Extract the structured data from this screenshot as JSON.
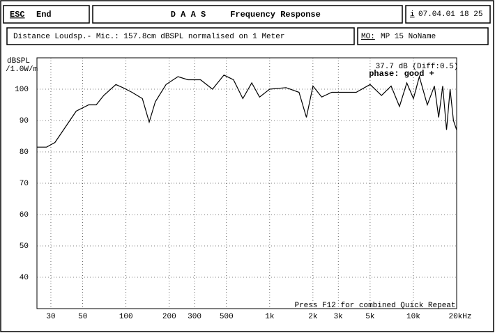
{
  "header": {
    "esc_key": "ESC",
    "esc_label": "End",
    "title": "D A A S",
    "subtitle": "Frequency Response",
    "info_key": "i",
    "date": "07.04.01 18 25"
  },
  "status": {
    "measurement": "Distance Loudsp.- Mic.: 157.8cm dBSPL normalised on 1 Meter",
    "model_key": "MO:",
    "model": "MP 15 NoName"
  },
  "chart_data": {
    "type": "line",
    "y_label_1": "dBSPL",
    "y_label_2": "/1.0W/m",
    "annotations": [
      "37.7 dB (Diff:0.5)",
      "phase: good +",
      "Press F12 for combined Quick Repeat"
    ],
    "x_log": true,
    "grid": true,
    "xlim": [
      24,
      20000
    ],
    "ylim": [
      30,
      110
    ],
    "xticks": [
      30,
      50,
      100,
      200,
      300,
      500,
      {
        "value": 1000,
        "label": "1k"
      },
      {
        "value": 2000,
        "label": "2k"
      },
      {
        "value": 3000,
        "label": "3k"
      },
      {
        "value": 5000,
        "label": "5k"
      },
      {
        "value": 10000,
        "label": "10k"
      },
      {
        "value": 20000,
        "label": "20kHz"
      }
    ],
    "yticks": [
      40,
      50,
      60,
      70,
      80,
      90,
      100
    ],
    "series": [
      {
        "color": "#000000",
        "x": [
          24,
          28,
          32,
          38,
          45,
          55,
          62,
          70,
          85,
          95,
          110,
          130,
          145,
          160,
          190,
          230,
          270,
          330,
          400,
          480,
          560,
          650,
          750,
          850,
          1000,
          1300,
          1600,
          1800,
          2000,
          2300,
          2700,
          4000,
          5000,
          6000,
          7000,
          8000,
          9000,
          10000,
          11000,
          12500,
          14000,
          15000,
          16000,
          17000,
          18000,
          19000,
          20000
        ],
        "values": [
          81.5,
          81.5,
          83,
          88,
          93,
          95,
          95,
          98,
          101.5,
          100.5,
          99,
          97,
          89.5,
          96,
          101.5,
          104,
          103,
          103,
          100,
          104.5,
          103,
          97,
          102,
          97.5,
          100,
          100.5,
          99,
          91,
          101,
          97.5,
          99,
          99,
          101.5,
          98,
          101,
          94.5,
          102,
          97,
          104,
          95,
          101,
          91,
          101,
          87,
          100,
          90,
          87
        ]
      }
    ]
  }
}
